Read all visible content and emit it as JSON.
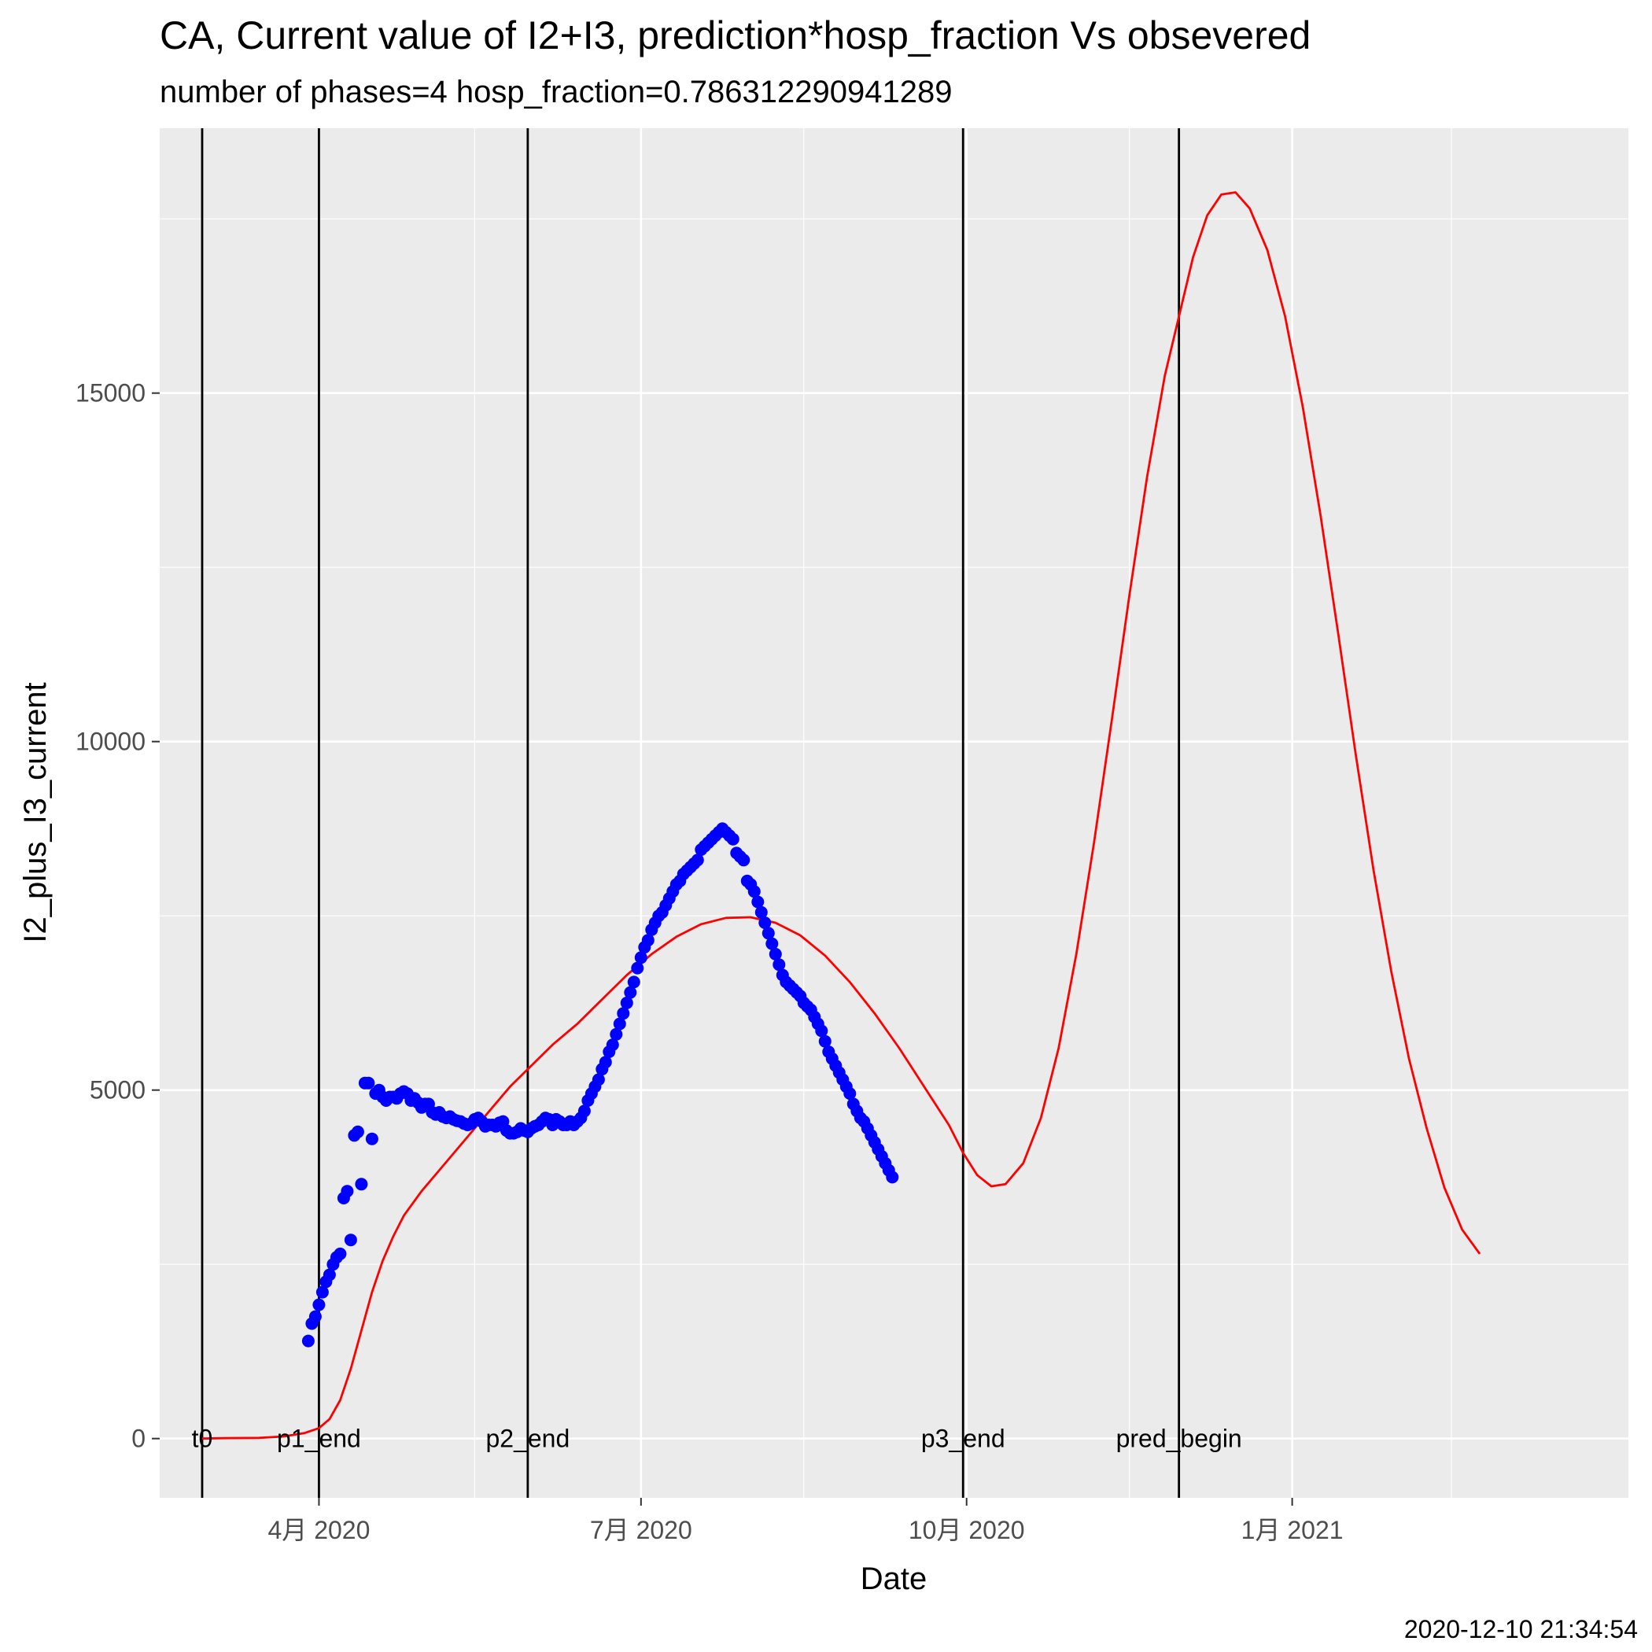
{
  "chart_data": {
    "type": "line",
    "title": "CA, Current value of I2+I3, prediction*hosp_fraction Vs obsevered",
    "subtitle": "number of phases=4   hosp_fraction=0.786312290941289",
    "xlabel": "Date",
    "ylabel": "I2_plus_I3_current",
    "caption": "2020-12-10 21:34:54",
    "xlim": [
      "2020-02-16",
      "2021-04-06"
    ],
    "ylim": [
      -850,
      18800
    ],
    "grid": true,
    "legend": "none",
    "x_ticks": [
      {
        "date": "2020-04-01",
        "label": "4月 2020"
      },
      {
        "date": "2020-07-01",
        "label": "7月 2020"
      },
      {
        "date": "2020-10-01",
        "label": "10月 2020"
      },
      {
        "date": "2021-01-01",
        "label": "1月 2021"
      }
    ],
    "x_minor_ticks": [
      "2020-02-15",
      "2020-05-15",
      "2020-08-16",
      "2020-11-16",
      "2021-02-15"
    ],
    "y_ticks": [
      0,
      5000,
      10000,
      15000
    ],
    "y_minor_ticks": [
      2500,
      7500,
      12500,
      17500
    ],
    "vlines": [
      {
        "date": "2020-02-28",
        "label": "t0"
      },
      {
        "date": "2020-04-01",
        "label": "p1_end"
      },
      {
        "date": "2020-05-30",
        "label": "p2_end"
      },
      {
        "date": "2020-09-30",
        "label": "p3_end"
      },
      {
        "date": "2020-11-30",
        "label": "pred_begin"
      }
    ],
    "colors": {
      "prediction": "#ff0000",
      "observed": "#0000ff",
      "vline": "#000000",
      "panel": "#ebebeb",
      "grid": "#ffffff"
    },
    "series": [
      {
        "kind": "line",
        "color": "#ff0000",
        "points": [
          [
            "2020-02-28",
            0
          ],
          [
            "2020-03-05",
            5
          ],
          [
            "2020-03-15",
            10
          ],
          [
            "2020-03-22",
            30
          ],
          [
            "2020-03-28",
            80
          ],
          [
            "2020-04-01",
            150
          ],
          [
            "2020-04-04",
            280
          ],
          [
            "2020-04-07",
            550
          ],
          [
            "2020-04-10",
            1000
          ],
          [
            "2020-04-13",
            1550
          ],
          [
            "2020-04-16",
            2100
          ],
          [
            "2020-04-19",
            2550
          ],
          [
            "2020-04-22",
            2900
          ],
          [
            "2020-04-25",
            3200
          ],
          [
            "2020-04-30",
            3550
          ],
          [
            "2020-05-05",
            3850
          ],
          [
            "2020-05-10",
            4150
          ],
          [
            "2020-05-15",
            4450
          ],
          [
            "2020-05-20",
            4750
          ],
          [
            "2020-05-25",
            5050
          ],
          [
            "2020-05-30",
            5300
          ],
          [
            "2020-06-06",
            5650
          ],
          [
            "2020-06-13",
            5950
          ],
          [
            "2020-06-20",
            6300
          ],
          [
            "2020-06-27",
            6650
          ],
          [
            "2020-07-04",
            6950
          ],
          [
            "2020-07-11",
            7200
          ],
          [
            "2020-07-18",
            7380
          ],
          [
            "2020-07-25",
            7470
          ],
          [
            "2020-08-01",
            7480
          ],
          [
            "2020-08-08",
            7400
          ],
          [
            "2020-08-15",
            7220
          ],
          [
            "2020-08-22",
            6930
          ],
          [
            "2020-08-29",
            6550
          ],
          [
            "2020-09-05",
            6100
          ],
          [
            "2020-09-12",
            5600
          ],
          [
            "2020-09-19",
            5050
          ],
          [
            "2020-09-26",
            4500
          ],
          [
            "2020-09-30",
            4100
          ],
          [
            "2020-10-04",
            3780
          ],
          [
            "2020-10-08",
            3620
          ],
          [
            "2020-10-12",
            3650
          ],
          [
            "2020-10-17",
            3950
          ],
          [
            "2020-10-22",
            4600
          ],
          [
            "2020-10-27",
            5600
          ],
          [
            "2020-11-01",
            6950
          ],
          [
            "2020-11-06",
            8550
          ],
          [
            "2020-11-11",
            10300
          ],
          [
            "2020-11-16",
            12100
          ],
          [
            "2020-11-21",
            13800
          ],
          [
            "2020-11-26",
            15250
          ],
          [
            "2020-11-30",
            16100
          ],
          [
            "2020-12-04",
            16950
          ],
          [
            "2020-12-08",
            17550
          ],
          [
            "2020-12-12",
            17850
          ],
          [
            "2020-12-16",
            17880
          ],
          [
            "2020-12-20",
            17650
          ],
          [
            "2020-12-25",
            17050
          ],
          [
            "2020-12-30",
            16100
          ],
          [
            "2021-01-04",
            14800
          ],
          [
            "2021-01-09",
            13250
          ],
          [
            "2021-01-14",
            11550
          ],
          [
            "2021-01-19",
            9800
          ],
          [
            "2021-01-24",
            8150
          ],
          [
            "2021-01-29",
            6700
          ],
          [
            "2021-02-03",
            5450
          ],
          [
            "2021-02-08",
            4450
          ],
          [
            "2021-02-13",
            3600
          ],
          [
            "2021-02-18",
            3000
          ],
          [
            "2021-02-23",
            2650
          ]
        ]
      },
      {
        "kind": "points",
        "color": "#0000ff",
        "points": [
          [
            "2020-03-29",
            1400
          ],
          [
            "2020-03-30",
            1650
          ],
          [
            "2020-03-31",
            1750
          ],
          [
            "2020-04-01",
            1920
          ],
          [
            "2020-04-02",
            2100
          ],
          [
            "2020-04-03",
            2250
          ],
          [
            "2020-04-04",
            2350
          ],
          [
            "2020-04-05",
            2500
          ],
          [
            "2020-04-06",
            2600
          ],
          [
            "2020-04-07",
            2650
          ],
          [
            "2020-04-08",
            3450
          ],
          [
            "2020-04-09",
            3550
          ],
          [
            "2020-04-10",
            2850
          ],
          [
            "2020-04-11",
            4350
          ],
          [
            "2020-04-12",
            4400
          ],
          [
            "2020-04-13",
            3650
          ],
          [
            "2020-04-14",
            5100
          ],
          [
            "2020-04-15",
            5100
          ],
          [
            "2020-04-16",
            4300
          ],
          [
            "2020-04-17",
            4950
          ],
          [
            "2020-04-18",
            5000
          ],
          [
            "2020-04-19",
            4900
          ],
          [
            "2020-04-20",
            4850
          ],
          [
            "2020-04-21",
            4900
          ],
          [
            "2020-04-22",
            4900
          ],
          [
            "2020-04-23",
            4880
          ],
          [
            "2020-04-24",
            4950
          ],
          [
            "2020-04-25",
            4980
          ],
          [
            "2020-04-26",
            4950
          ],
          [
            "2020-04-27",
            4850
          ],
          [
            "2020-04-28",
            4880
          ],
          [
            "2020-04-29",
            4820
          ],
          [
            "2020-04-30",
            4750
          ],
          [
            "2020-05-01",
            4800
          ],
          [
            "2020-05-02",
            4800
          ],
          [
            "2020-05-03",
            4680
          ],
          [
            "2020-05-04",
            4650
          ],
          [
            "2020-05-05",
            4680
          ],
          [
            "2020-05-06",
            4620
          ],
          [
            "2020-05-07",
            4600
          ],
          [
            "2020-05-08",
            4620
          ],
          [
            "2020-05-09",
            4580
          ],
          [
            "2020-05-10",
            4560
          ],
          [
            "2020-05-11",
            4550
          ],
          [
            "2020-05-12",
            4520
          ],
          [
            "2020-05-13",
            4500
          ],
          [
            "2020-05-14",
            4520
          ],
          [
            "2020-05-15",
            4580
          ],
          [
            "2020-05-16",
            4600
          ],
          [
            "2020-05-17",
            4550
          ],
          [
            "2020-05-18",
            4480
          ],
          [
            "2020-05-19",
            4500
          ],
          [
            "2020-05-20",
            4500
          ],
          [
            "2020-05-21",
            4480
          ],
          [
            "2020-05-22",
            4530
          ],
          [
            "2020-05-23",
            4550
          ],
          [
            "2020-05-24",
            4420
          ],
          [
            "2020-05-25",
            4380
          ],
          [
            "2020-05-26",
            4380
          ],
          [
            "2020-05-27",
            4400
          ],
          [
            "2020-05-28",
            4450
          ],
          [
            "2020-05-29",
            4420
          ],
          [
            "2020-05-30",
            4400
          ],
          [
            "2020-05-31",
            4450
          ],
          [
            "2020-06-01",
            4480
          ],
          [
            "2020-06-02",
            4500
          ],
          [
            "2020-06-03",
            4550
          ],
          [
            "2020-06-04",
            4600
          ],
          [
            "2020-06-05",
            4580
          ],
          [
            "2020-06-06",
            4500
          ],
          [
            "2020-06-07",
            4580
          ],
          [
            "2020-06-08",
            4550
          ],
          [
            "2020-06-09",
            4500
          ],
          [
            "2020-06-10",
            4500
          ],
          [
            "2020-06-11",
            4550
          ],
          [
            "2020-06-12",
            4500
          ],
          [
            "2020-06-13",
            4550
          ],
          [
            "2020-06-14",
            4600
          ],
          [
            "2020-06-15",
            4700
          ],
          [
            "2020-06-16",
            4850
          ],
          [
            "2020-06-17",
            4950
          ],
          [
            "2020-06-18",
            5050
          ],
          [
            "2020-06-19",
            5150
          ],
          [
            "2020-06-20",
            5300
          ],
          [
            "2020-06-21",
            5400
          ],
          [
            "2020-06-22",
            5550
          ],
          [
            "2020-06-23",
            5650
          ],
          [
            "2020-06-24",
            5800
          ],
          [
            "2020-06-25",
            5950
          ],
          [
            "2020-06-26",
            6100
          ],
          [
            "2020-06-27",
            6250
          ],
          [
            "2020-06-28",
            6400
          ],
          [
            "2020-06-29",
            6550
          ],
          [
            "2020-06-30",
            6750
          ],
          [
            "2020-07-01",
            6900
          ],
          [
            "2020-07-02",
            7050
          ],
          [
            "2020-07-03",
            7150
          ],
          [
            "2020-07-04",
            7300
          ],
          [
            "2020-07-05",
            7400
          ],
          [
            "2020-07-06",
            7500
          ],
          [
            "2020-07-07",
            7550
          ],
          [
            "2020-07-08",
            7650
          ],
          [
            "2020-07-09",
            7750
          ],
          [
            "2020-07-10",
            7850
          ],
          [
            "2020-07-11",
            7950
          ],
          [
            "2020-07-12",
            8000
          ],
          [
            "2020-07-13",
            8100
          ],
          [
            "2020-07-14",
            8150
          ],
          [
            "2020-07-15",
            8200
          ],
          [
            "2020-07-16",
            8250
          ],
          [
            "2020-07-17",
            8300
          ],
          [
            "2020-07-18",
            8450
          ],
          [
            "2020-07-19",
            8500
          ],
          [
            "2020-07-20",
            8550
          ],
          [
            "2020-07-21",
            8600
          ],
          [
            "2020-07-22",
            8650
          ],
          [
            "2020-07-23",
            8700
          ],
          [
            "2020-07-24",
            8750
          ],
          [
            "2020-07-25",
            8700
          ],
          [
            "2020-07-26",
            8650
          ],
          [
            "2020-07-27",
            8600
          ],
          [
            "2020-07-28",
            8400
          ],
          [
            "2020-07-29",
            8350
          ],
          [
            "2020-07-30",
            8300
          ],
          [
            "2020-07-31",
            8000
          ],
          [
            "2020-08-01",
            7950
          ],
          [
            "2020-08-02",
            7850
          ],
          [
            "2020-08-03",
            7700
          ],
          [
            "2020-08-04",
            7550
          ],
          [
            "2020-08-05",
            7400
          ],
          [
            "2020-08-06",
            7250
          ],
          [
            "2020-08-07",
            7100
          ],
          [
            "2020-08-08",
            6950
          ],
          [
            "2020-08-09",
            6800
          ],
          [
            "2020-08-10",
            6650
          ],
          [
            "2020-08-11",
            6550
          ],
          [
            "2020-08-12",
            6500
          ],
          [
            "2020-08-13",
            6450
          ],
          [
            "2020-08-14",
            6400
          ],
          [
            "2020-08-15",
            6350
          ],
          [
            "2020-08-16",
            6250
          ],
          [
            "2020-08-17",
            6200
          ],
          [
            "2020-08-18",
            6150
          ],
          [
            "2020-08-19",
            6050
          ],
          [
            "2020-08-20",
            5950
          ],
          [
            "2020-08-21",
            5850
          ],
          [
            "2020-08-22",
            5700
          ],
          [
            "2020-08-23",
            5550
          ],
          [
            "2020-08-24",
            5450
          ],
          [
            "2020-08-25",
            5350
          ],
          [
            "2020-08-26",
            5250
          ],
          [
            "2020-08-27",
            5150
          ],
          [
            "2020-08-28",
            5050
          ],
          [
            "2020-08-29",
            4950
          ],
          [
            "2020-08-30",
            4800
          ],
          [
            "2020-08-31",
            4700
          ],
          [
            "2020-09-01",
            4600
          ],
          [
            "2020-09-02",
            4550
          ],
          [
            "2020-09-03",
            4450
          ],
          [
            "2020-09-04",
            4350
          ],
          [
            "2020-09-05",
            4250
          ],
          [
            "2020-09-06",
            4150
          ],
          [
            "2020-09-07",
            4050
          ],
          [
            "2020-09-08",
            3950
          ],
          [
            "2020-09-09",
            3850
          ],
          [
            "2020-09-10",
            3750
          ]
        ]
      }
    ]
  }
}
